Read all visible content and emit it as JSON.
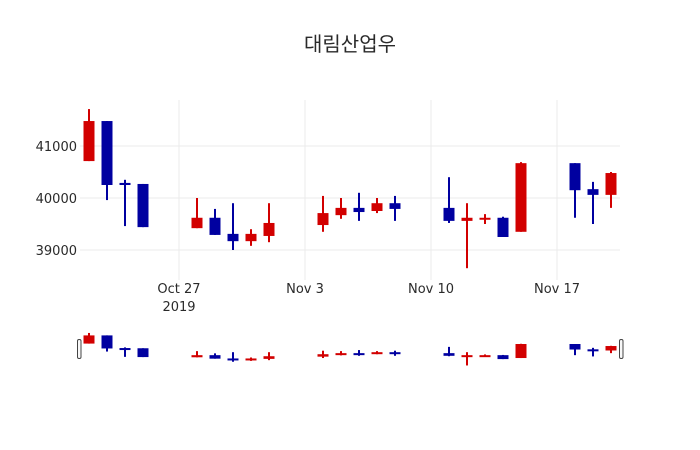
{
  "title": "대림산업우",
  "colors": {
    "increasing": "#d20000",
    "decreasing": "#0000a0",
    "grid": "#ebebeb"
  },
  "chart_data": {
    "type": "candlestick",
    "title": "대림산업우",
    "xlabel": "",
    "ylabel": "",
    "ylim": [
      38450,
      41900
    ],
    "yticks": [
      39000,
      40000,
      41000
    ],
    "xticks": [
      {
        "date": "2019-10-27",
        "label": "Oct 27",
        "sublabel": "2019"
      },
      {
        "date": "2019-11-03",
        "label": "Nov 3"
      },
      {
        "date": "2019-11-10",
        "label": "Nov 10"
      },
      {
        "date": "2019-11-17",
        "label": "Nov 17"
      }
    ],
    "grid": true,
    "legend": false,
    "rangeslider": true,
    "candles": [
      {
        "date": "2019-10-22",
        "open": 40710,
        "high": 41710,
        "low": 40710,
        "close": 41480
      },
      {
        "date": "2019-10-23",
        "open": 41480,
        "high": 41480,
        "low": 39960,
        "close": 40250
      },
      {
        "date": "2019-10-24",
        "open": 40290,
        "high": 40350,
        "low": 39460,
        "close": 40250
      },
      {
        "date": "2019-10-25",
        "open": 40270,
        "high": 40270,
        "low": 39440,
        "close": 39440
      },
      {
        "date": "2019-10-28",
        "open": 39420,
        "high": 40000,
        "low": 39420,
        "close": 39620
      },
      {
        "date": "2019-10-29",
        "open": 39620,
        "high": 39790,
        "low": 39290,
        "close": 39290
      },
      {
        "date": "2019-10-30",
        "open": 39310,
        "high": 39900,
        "low": 39000,
        "close": 39170
      },
      {
        "date": "2019-10-31",
        "open": 39170,
        "high": 39400,
        "low": 39080,
        "close": 39310
      },
      {
        "date": "2019-11-01",
        "open": 39270,
        "high": 39900,
        "low": 39150,
        "close": 39520
      },
      {
        "date": "2019-11-04",
        "open": 39480,
        "high": 40040,
        "low": 39350,
        "close": 39710
      },
      {
        "date": "2019-11-05",
        "open": 39670,
        "high": 40000,
        "low": 39600,
        "close": 39810
      },
      {
        "date": "2019-11-06",
        "open": 39810,
        "high": 40100,
        "low": 39560,
        "close": 39730
      },
      {
        "date": "2019-11-07",
        "open": 39750,
        "high": 40000,
        "low": 39710,
        "close": 39900
      },
      {
        "date": "2019-11-08",
        "open": 39900,
        "high": 40040,
        "low": 39560,
        "close": 39790
      },
      {
        "date": "2019-11-11",
        "open": 39810,
        "high": 40400,
        "low": 39520,
        "close": 39560
      },
      {
        "date": "2019-11-12",
        "open": 39560,
        "high": 39900,
        "low": 38650,
        "close": 39620
      },
      {
        "date": "2019-11-13",
        "open": 39600,
        "high": 39690,
        "low": 39500,
        "close": 39620
      },
      {
        "date": "2019-11-14",
        "open": 39620,
        "high": 39640,
        "low": 39250,
        "close": 39250
      },
      {
        "date": "2019-11-15",
        "open": 39350,
        "high": 40690,
        "low": 39350,
        "close": 40670
      },
      {
        "date": "2019-11-18",
        "open": 40670,
        "high": 40670,
        "low": 39620,
        "close": 40150
      },
      {
        "date": "2019-11-19",
        "open": 40170,
        "high": 40310,
        "low": 39500,
        "close": 40060
      },
      {
        "date": "2019-11-20",
        "open": 40060,
        "high": 40500,
        "low": 39810,
        "close": 40480
      }
    ]
  }
}
